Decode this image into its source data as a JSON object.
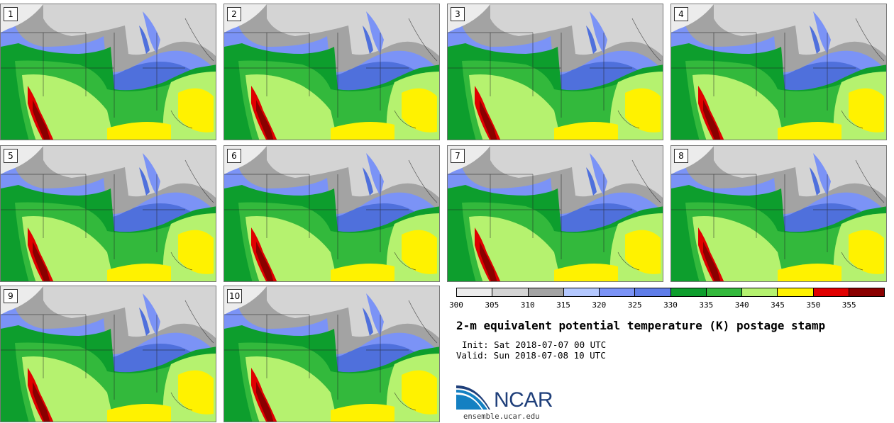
{
  "panels": [
    {
      "label": "1"
    },
    {
      "label": "2"
    },
    {
      "label": "3"
    },
    {
      "label": "4"
    },
    {
      "label": "5"
    },
    {
      "label": "6"
    },
    {
      "label": "7"
    },
    {
      "label": "8"
    },
    {
      "label": "9"
    },
    {
      "label": "10"
    }
  ],
  "colorbar": {
    "colors": [
      "#ececec",
      "#d4d4d4",
      "#a3a3a3",
      "#b4c8ff",
      "#7b93f6",
      "#5f7de8",
      "#0d9e2d",
      "#33b93c",
      "#b5f26f",
      "#fff200",
      "#e00000",
      "#8a0000"
    ],
    "ticks": [
      "300",
      "305",
      "310",
      "315",
      "320",
      "325",
      "330",
      "335",
      "340",
      "345",
      "350",
      "355"
    ]
  },
  "title": "2-m equivalent potential temperature (K) postage stamp",
  "init": "Init: Sat 2018-07-07 00 UTC",
  "valid": "Valid: Sun 2018-07-08 10 UTC",
  "logo": {
    "text": "NCAR",
    "url": "ensemble.ucar.edu"
  }
}
